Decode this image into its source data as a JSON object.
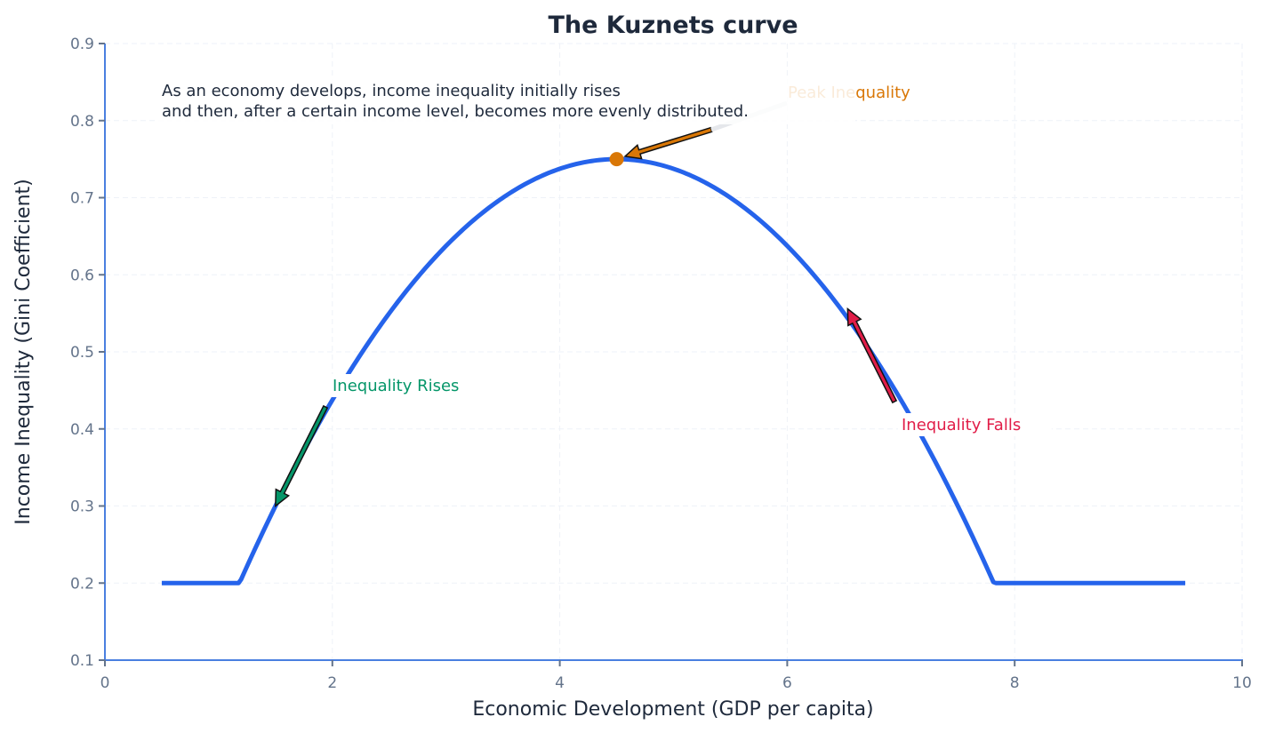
{
  "chart_data": {
    "type": "line",
    "title": "The Kuznets curve",
    "xlabel": "Economic Development (GDP per capita)",
    "ylabel": "Income Inequality (Gini Coefficient)",
    "xlim": [
      0,
      10
    ],
    "ylim": [
      0.1,
      0.9
    ],
    "xticks": [
      0,
      2,
      4,
      6,
      8,
      10
    ],
    "yticks": [
      0.1,
      0.2,
      0.3,
      0.4,
      0.5,
      0.6,
      0.7,
      0.8,
      0.9
    ],
    "xtick_labels": [
      "0",
      "2",
      "4",
      "6",
      "8",
      "10"
    ],
    "ytick_labels": [
      "0.1",
      "0.2",
      "0.3",
      "0.4",
      "0.5",
      "0.6",
      "0.7",
      "0.8",
      "0.9"
    ],
    "grid": true,
    "legend": null,
    "series": [
      {
        "name": "Kuznets curve",
        "color": "#2563eb",
        "formula": "y = max(0.2, 0.75 - 0.05*(x-4.5)^2)",
        "x": [
          0.5,
          1.0,
          1.18,
          1.5,
          2.0,
          2.5,
          3.0,
          3.5,
          4.0,
          4.5,
          5.0,
          5.5,
          6.0,
          6.5,
          7.0,
          7.5,
          7.82,
          8.0,
          8.5,
          9.0,
          9.5
        ],
        "values": [
          0.2,
          0.2,
          0.2,
          0.3,
          0.4375,
          0.55,
          0.6375,
          0.7,
          0.7375,
          0.75,
          0.7375,
          0.7,
          0.6375,
          0.55,
          0.4375,
          0.3,
          0.2,
          0.2,
          0.2,
          0.2,
          0.2
        ]
      }
    ],
    "points": [
      {
        "name": "peak",
        "x": 4.5,
        "y": 0.75,
        "color": "#d97706"
      }
    ],
    "annotations": [
      {
        "text": "As an economy develops, income inequality initially rises",
        "x": 0.5,
        "y": 0.845,
        "color": "#1e293b"
      },
      {
        "text": "and then, after a certain income level, becomes more evenly distributed.",
        "x": 0.5,
        "y": 0.818,
        "color": "#1e293b"
      },
      {
        "text": "Peak Inequality",
        "x": 6.0,
        "y": 0.83,
        "color": "#d97706",
        "arrow_to": [
          4.5,
          0.75
        ]
      },
      {
        "text": "Inequality Rises",
        "x": 2.0,
        "y": 0.45,
        "color": "#059669",
        "arrow_to": [
          1.5,
          0.3
        ]
      },
      {
        "text": "Inequality Falls",
        "x": 7.0,
        "y": 0.4,
        "color": "#e11d48",
        "arrow_to": [
          6.5,
          0.55
        ]
      }
    ]
  },
  "colors": {
    "line": "#2563eb",
    "peak": "#d97706",
    "rises": "#059669",
    "falls": "#e11d48",
    "spine": "#4a7fe0",
    "text": "#1e293b",
    "tick_text": "#64748b"
  }
}
